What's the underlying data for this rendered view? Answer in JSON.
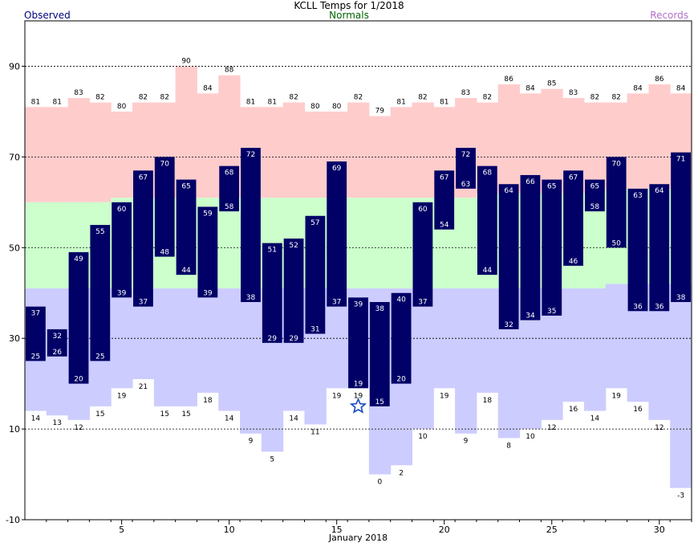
{
  "chart_data": {
    "type": "bar",
    "title": "KCLL Temps for 1/2018",
    "xlabel": "January 2018",
    "ylabel": "",
    "legend": {
      "observed": "Observed",
      "normals": "Normals",
      "records": "Records"
    },
    "xlim": [
      0.5,
      31.5
    ],
    "ylim": [
      -10,
      100
    ],
    "yticks": [
      -10,
      10,
      30,
      50,
      70,
      90
    ],
    "xticks": [
      5,
      10,
      15,
      20,
      25,
      30
    ],
    "days": [
      1,
      2,
      3,
      4,
      5,
      6,
      7,
      8,
      9,
      10,
      11,
      12,
      13,
      14,
      15,
      16,
      17,
      18,
      19,
      20,
      21,
      22,
      23,
      24,
      25,
      26,
      27,
      28,
      29,
      30,
      31
    ],
    "record_high": [
      81,
      81,
      83,
      82,
      80,
      82,
      82,
      90,
      84,
      88,
      81,
      81,
      82,
      80,
      80,
      82,
      79,
      81,
      82,
      81,
      83,
      82,
      86,
      84,
      85,
      83,
      82,
      82,
      84,
      86,
      84
    ],
    "record_low": [
      14,
      13,
      12,
      15,
      19,
      21,
      15,
      15,
      18,
      14,
      9,
      5,
      14,
      11,
      19,
      19,
      0,
      2,
      10,
      19,
      9,
      18,
      8,
      10,
      12,
      16,
      14,
      19,
      16,
      12,
      -3
    ],
    "normal_high": [
      60,
      60,
      60,
      60,
      61,
      61,
      61,
      61,
      61,
      61,
      61,
      61,
      61,
      61,
      61,
      61,
      61,
      61,
      61,
      61,
      61,
      62,
      62,
      62,
      62,
      62,
      62,
      63,
      63,
      63,
      63
    ],
    "normal_low": [
      41,
      41,
      41,
      41,
      41,
      41,
      41,
      41,
      41,
      41,
      41,
      41,
      41,
      41,
      41,
      41,
      41,
      41,
      41,
      41,
      41,
      41,
      41,
      41,
      41,
      41,
      41,
      42,
      42,
      42,
      42
    ],
    "observed_high": [
      37,
      32,
      49,
      55,
      60,
      67,
      70,
      65,
      59,
      68,
      72,
      51,
      52,
      57,
      69,
      39,
      38,
      40,
      60,
      67,
      72,
      68,
      64,
      66,
      65,
      67,
      65,
      70,
      63,
      64,
      71
    ],
    "observed_low": [
      25,
      26,
      20,
      25,
      39,
      37,
      48,
      44,
      39,
      58,
      38,
      29,
      29,
      31,
      37,
      19,
      15,
      20,
      37,
      54,
      63,
      44,
      32,
      34,
      35,
      46,
      58,
      50,
      36,
      36,
      38
    ],
    "record_marker_day": 16,
    "record_marker_value": 15,
    "colors": {
      "record_band": "#ffcccc",
      "normal_band": "#ccffcc",
      "low_band": "#ccccff",
      "observed_bar": "#000066",
      "observed_label": "#ffffff",
      "gridline": "#000000",
      "marker": "#1a49c4"
    }
  }
}
